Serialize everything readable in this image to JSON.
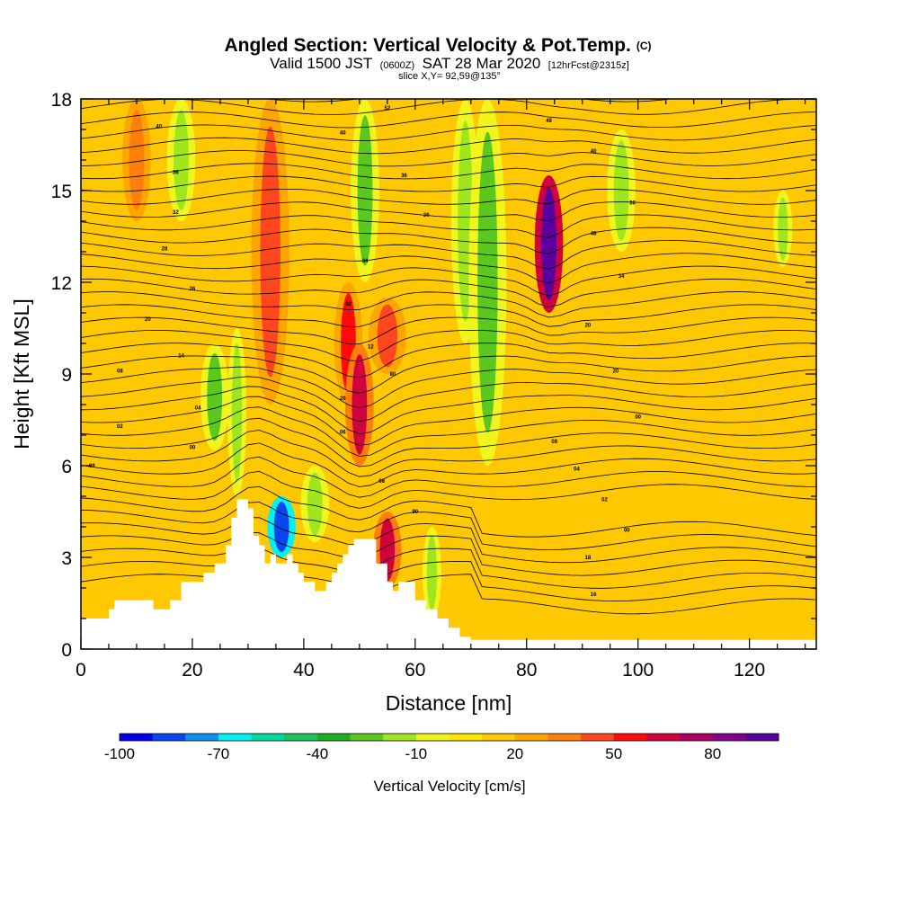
{
  "title": {
    "main": "Angled Section: Vertical Velocity & Pot.Temp.",
    "copyright": "(C)",
    "valid_prefix": "Valid 1500 JST",
    "valid_utc": "(0600Z)",
    "valid_date": "SAT 28 Mar 2020",
    "valid_fcst": "[12hrFcst@2315z]",
    "slice": "slice X,Y= 92,59@135°"
  },
  "chart_data": {
    "type": "heatmap",
    "xlabel": "Distance [nm]",
    "ylabel": "Height [Kft MSL]",
    "xlim": [
      0,
      132
    ],
    "ylim": [
      0,
      18
    ],
    "x_ticks": [
      0,
      20,
      40,
      60,
      80,
      100,
      120
    ],
    "y_ticks": [
      0,
      3,
      6,
      9,
      12,
      15,
      18
    ],
    "background_value_cm_s": 15,
    "vertical_velocity_features_cm_s": [
      {
        "x": 10,
        "y_range": [
          14,
          18
        ],
        "width": 3,
        "value": 35
      },
      {
        "x": 18,
        "y_range": [
          14,
          18
        ],
        "width": 3,
        "value": -20
      },
      {
        "x": 24,
        "y_range": [
          6.5,
          10
        ],
        "width": 3,
        "value": -25
      },
      {
        "x": 28,
        "y_range": [
          5,
          10.5
        ],
        "width": 2,
        "value": -20
      },
      {
        "x": 34,
        "y_range": [
          8,
          18
        ],
        "width": 4,
        "value": 40
      },
      {
        "x": 36,
        "y_range": [
          3,
          5
        ],
        "width": 3,
        "value": -90
      },
      {
        "x": 42,
        "y_range": [
          3.5,
          6
        ],
        "width": 3,
        "value": -20
      },
      {
        "x": 48,
        "y_range": [
          8,
          12
        ],
        "width": 3,
        "value": 50
      },
      {
        "x": 50,
        "y_range": [
          6,
          10
        ],
        "width": 3,
        "value": 60
      },
      {
        "x": 51,
        "y_range": [
          12,
          18
        ],
        "width": 3,
        "value": -30
      },
      {
        "x": 55,
        "y_range": [
          9,
          11.5
        ],
        "width": 4,
        "value": 45
      },
      {
        "x": 55,
        "y_range": [
          2,
          4.5
        ],
        "width": 3,
        "value": 60
      },
      {
        "x": 63,
        "y_range": [
          1,
          4
        ],
        "width": 2,
        "value": -15
      },
      {
        "x": 69,
        "y_range": [
          10,
          18
        ],
        "width": 3,
        "value": -15
      },
      {
        "x": 73,
        "y_range": [
          6,
          18
        ],
        "width": 4,
        "value": -30
      },
      {
        "x": 84,
        "y_range": [
          11,
          15.5
        ],
        "width": 3,
        "value": 90
      },
      {
        "x": 97,
        "y_range": [
          13,
          17
        ],
        "width": 3,
        "value": -15
      },
      {
        "x": 126,
        "y_range": [
          12.5,
          15
        ],
        "width": 2,
        "value": -15
      }
    ],
    "terrain_ridges": [
      {
        "x": 30,
        "top_kft": 4.9
      },
      {
        "x": 52,
        "top_kft": 3.6
      }
    ],
    "isentrope_labels": [
      {
        "x": 14,
        "y": 17.1,
        "label": "40"
      },
      {
        "x": 17,
        "y": 15.6,
        "label": "36"
      },
      {
        "x": 17,
        "y": 14.3,
        "label": "32"
      },
      {
        "x": 15,
        "y": 13.1,
        "label": "28"
      },
      {
        "x": 20,
        "y": 11.8,
        "label": "26"
      },
      {
        "x": 12,
        "y": 10.8,
        "label": "20"
      },
      {
        "x": 18,
        "y": 9.6,
        "label": "14"
      },
      {
        "x": 7,
        "y": 9.1,
        "label": "08"
      },
      {
        "x": 21,
        "y": 7.9,
        "label": "04"
      },
      {
        "x": 7,
        "y": 7.3,
        "label": "02"
      },
      {
        "x": 20,
        "y": 6.6,
        "label": "00"
      },
      {
        "x": 2,
        "y": 6.0,
        "label": "98"
      },
      {
        "x": 55,
        "y": 17.7,
        "label": "52"
      },
      {
        "x": 47,
        "y": 16.9,
        "label": "40"
      },
      {
        "x": 58,
        "y": 15.5,
        "label": "36"
      },
      {
        "x": 62,
        "y": 14.2,
        "label": "36"
      },
      {
        "x": 51,
        "y": 12.7,
        "label": "34"
      },
      {
        "x": 48,
        "y": 11.3,
        "label": "32"
      },
      {
        "x": 52,
        "y": 9.9,
        "label": "12"
      },
      {
        "x": 56,
        "y": 9.0,
        "label": "80"
      },
      {
        "x": 47,
        "y": 8.2,
        "label": "20"
      },
      {
        "x": 47,
        "y": 7.1,
        "label": "06"
      },
      {
        "x": 54,
        "y": 5.5,
        "label": "08"
      },
      {
        "x": 60,
        "y": 4.5,
        "label": "90"
      },
      {
        "x": 84,
        "y": 17.3,
        "label": "48"
      },
      {
        "x": 92,
        "y": 16.3,
        "label": "40"
      },
      {
        "x": 99,
        "y": 14.6,
        "label": "36"
      },
      {
        "x": 92,
        "y": 13.6,
        "label": "48"
      },
      {
        "x": 97,
        "y": 12.2,
        "label": "34"
      },
      {
        "x": 91,
        "y": 10.6,
        "label": "20"
      },
      {
        "x": 96,
        "y": 9.1,
        "label": "20"
      },
      {
        "x": 100,
        "y": 7.6,
        "label": "00"
      },
      {
        "x": 85,
        "y": 6.8,
        "label": "08"
      },
      {
        "x": 89,
        "y": 5.9,
        "label": "04"
      },
      {
        "x": 94,
        "y": 4.9,
        "label": "02"
      },
      {
        "x": 98,
        "y": 3.9,
        "label": "00"
      },
      {
        "x": 91,
        "y": 3.0,
        "label": "18"
      },
      {
        "x": 92,
        "y": 1.8,
        "label": "16"
      }
    ],
    "colorbar": {
      "title": "Vertical Velocity [cm/s]",
      "levels": [
        -100,
        -90,
        -80,
        -70,
        -60,
        -50,
        -40,
        -30,
        -20,
        -10,
        0,
        10,
        20,
        30,
        40,
        50,
        60,
        70,
        80,
        90
      ],
      "colors": [
        "#0000ee",
        "#0a46f0",
        "#0a94f0",
        "#00f2f2",
        "#00d9a0",
        "#1ec25a",
        "#1eae1e",
        "#5ac81e",
        "#a0e61e",
        "#f0f51e",
        "#ffe600",
        "#ffc800",
        "#ffa500",
        "#ff7f0a",
        "#ff461e",
        "#ff0a0a",
        "#d2003c",
        "#aa0064",
        "#82008c",
        "#5a00a0"
      ],
      "tick_labels": [
        "-100",
        "-70",
        "-40",
        "-10",
        "20",
        "50",
        "80"
      ]
    }
  },
  "colors": {
    "background": "#ffffff",
    "contour": "#000000",
    "terrain": "#ffffff"
  }
}
